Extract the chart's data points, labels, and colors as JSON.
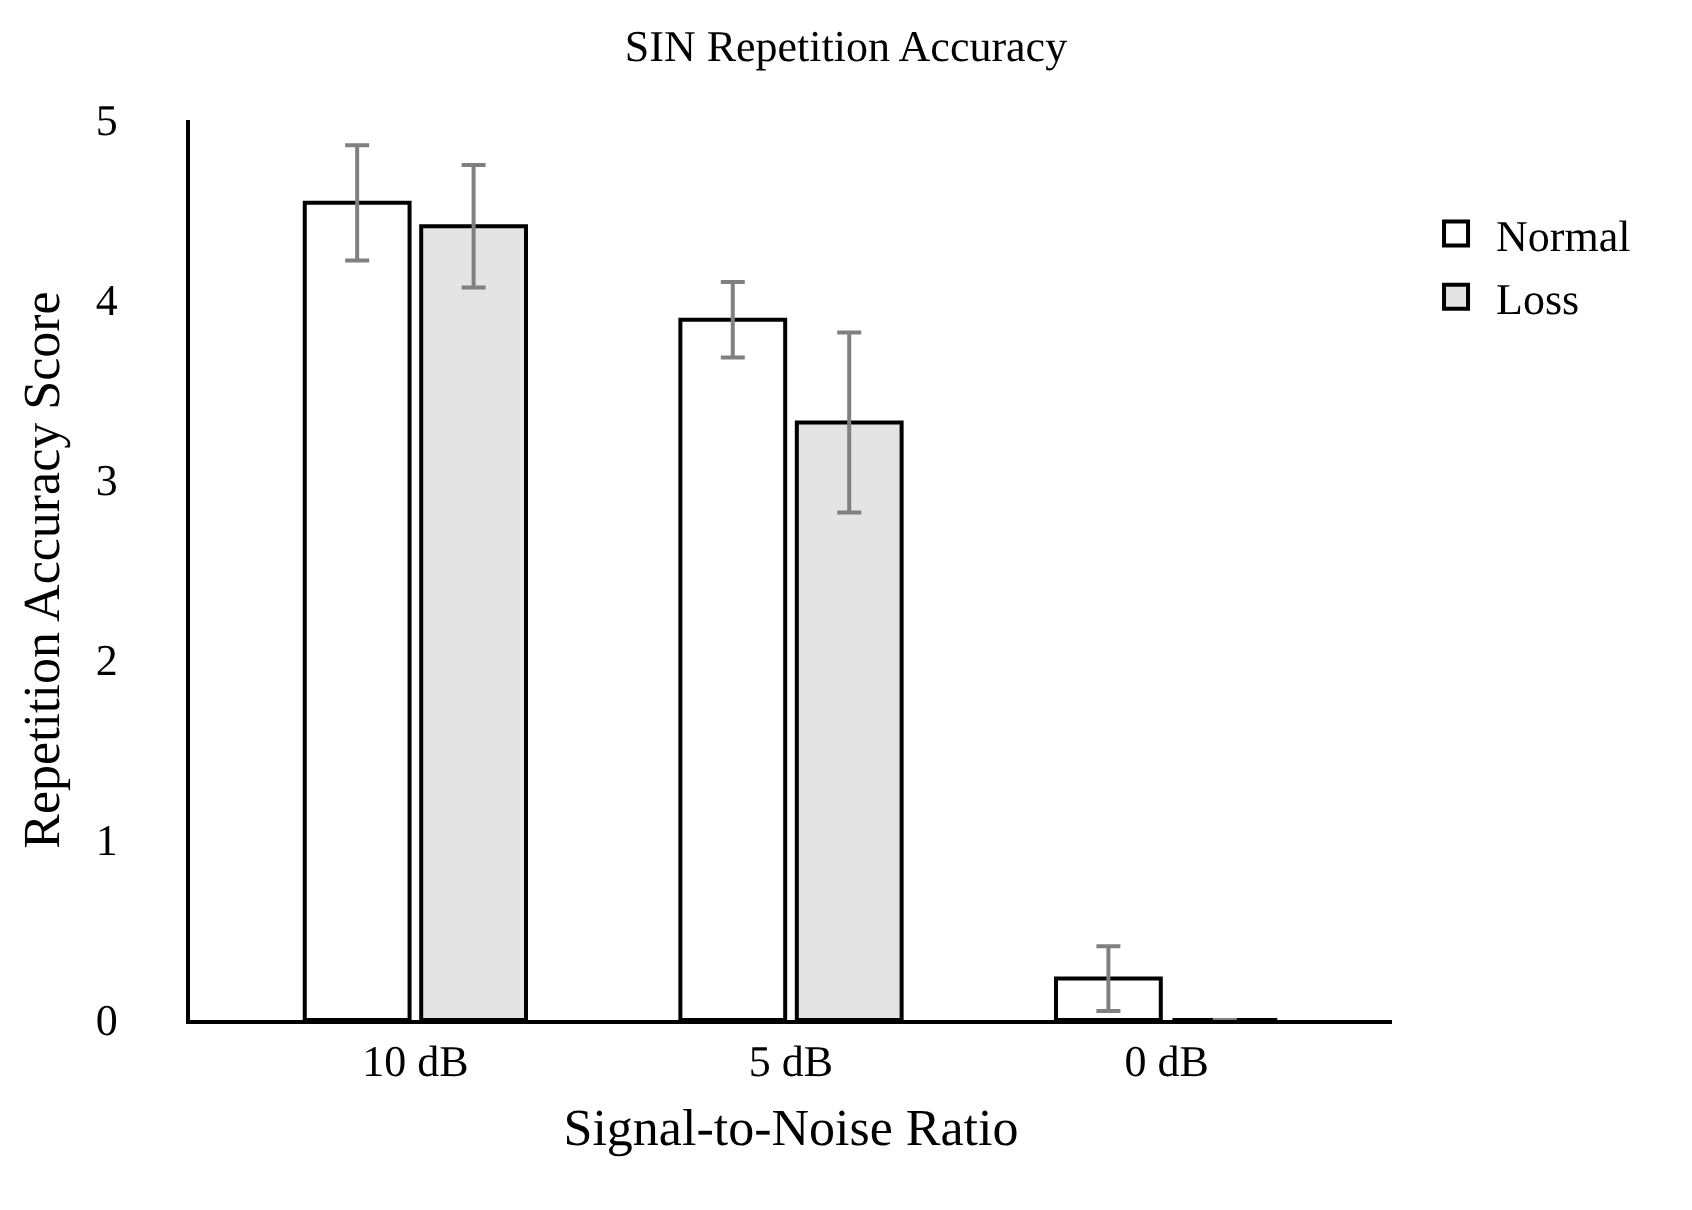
{
  "chart_data": {
    "type": "bar",
    "title": "SIN Repetition Accuracy",
    "xlabel": "Signal-to-Noise Ratio",
    "ylabel": "Repetition Accuracy Score",
    "categories": [
      "10 dB",
      "5 dB",
      "0 dB"
    ],
    "series": [
      {
        "name": "Normal",
        "color": "#ffffff",
        "values": [
          4.54,
          3.89,
          0.23
        ],
        "errors": [
          0.32,
          0.21,
          0.18
        ]
      },
      {
        "name": "Loss",
        "color": "#e4e4e4",
        "values": [
          4.41,
          3.32,
          0
        ],
        "errors": [
          0.34,
          0.5,
          null
        ]
      }
    ],
    "ylim": [
      0,
      5
    ],
    "yticks": [
      0,
      1,
      2,
      3,
      4,
      5
    ],
    "legend": "right"
  }
}
